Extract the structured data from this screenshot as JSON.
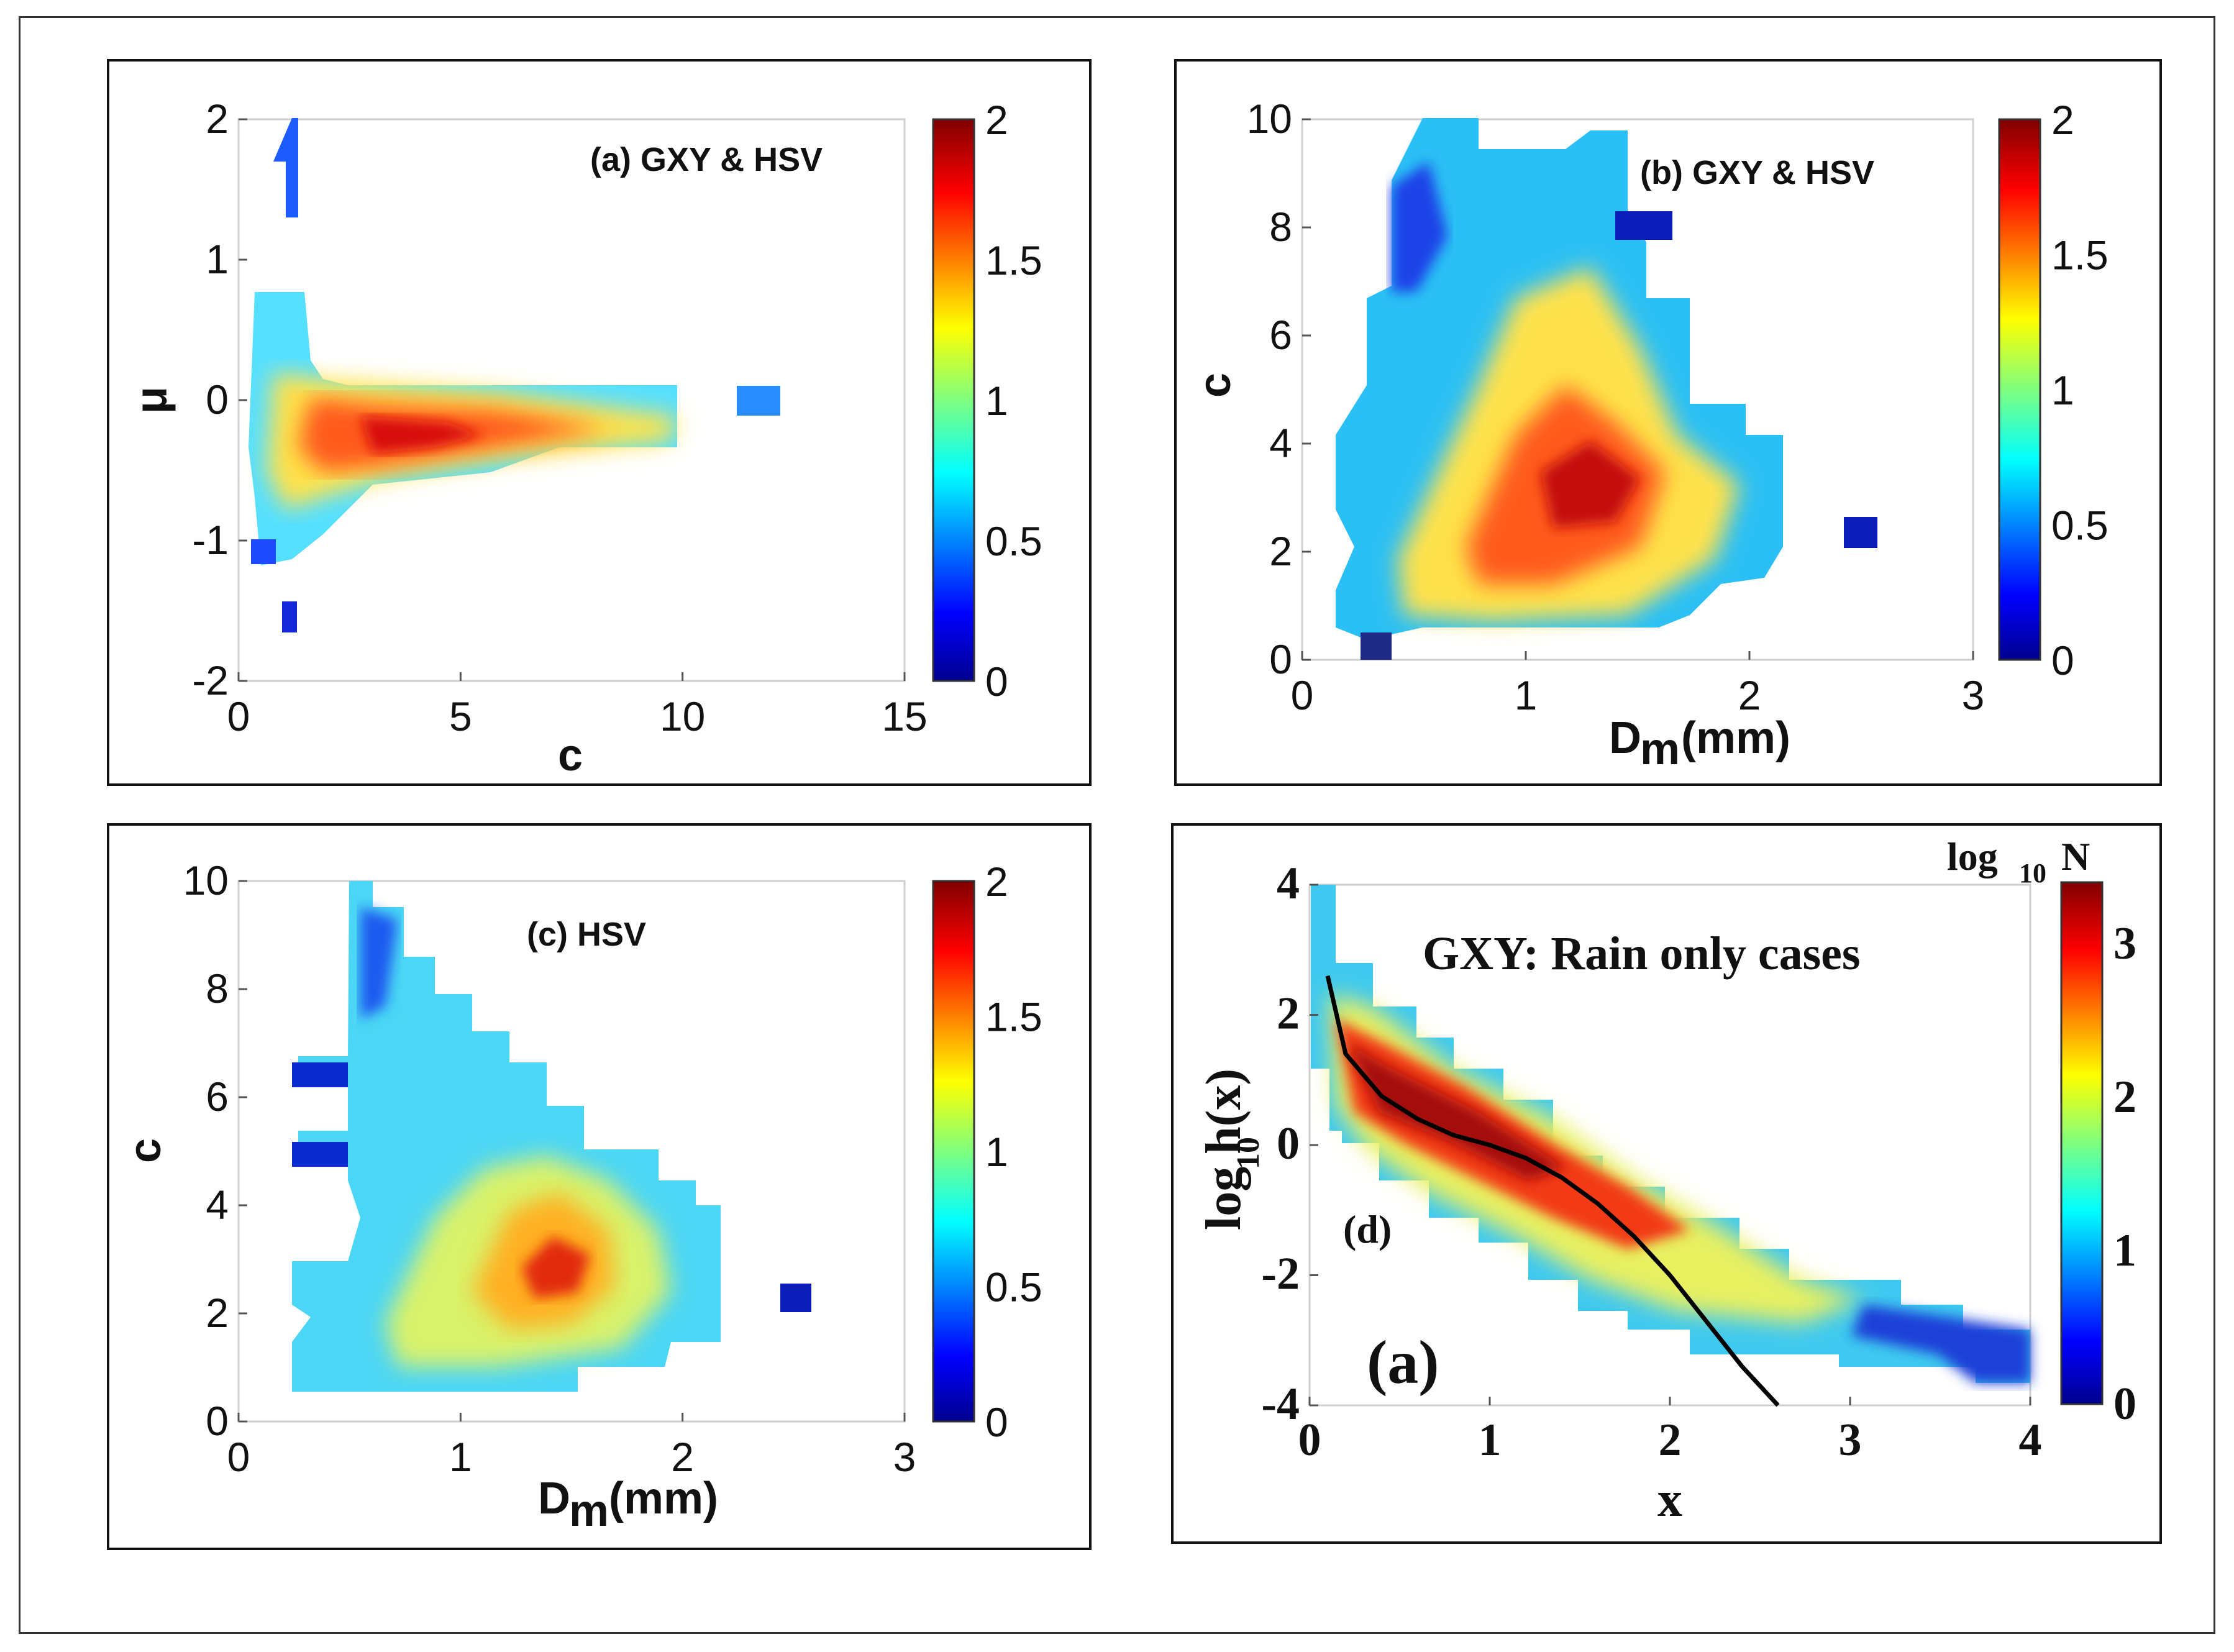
{
  "chart_data": [
    {
      "id": "a",
      "type": "heatmap",
      "title": "(a) GXY & HSV",
      "xlabel": "c",
      "ylabel": "μ",
      "xlim": [
        0,
        15
      ],
      "ylim": [
        -2,
        2
      ],
      "xticks": [
        "0",
        "5",
        "10",
        "15"
      ],
      "yticks": [
        "-2",
        "-1",
        "0",
        "1",
        "2"
      ],
      "colorbar": {
        "min": 0,
        "max": 2,
        "ticks": [
          "0",
          "0.5",
          "1",
          "1.5",
          "2"
        ]
      },
      "density_core": {
        "note": "peak density near c≈3, μ≈-0.3; tail to c≈10; isolated cell near c≈11.5, μ≈0"
      }
    },
    {
      "id": "b",
      "type": "heatmap",
      "title": "(b) GXY & HSV",
      "xlabel": "D_m (mm)",
      "ylabel": "c",
      "xlim": [
        0,
        3
      ],
      "ylim": [
        0,
        10
      ],
      "xticks": [
        "0",
        "1",
        "2",
        "3"
      ],
      "yticks": [
        "0",
        "2",
        "4",
        "6",
        "8",
        "10"
      ],
      "colorbar": {
        "min": 0,
        "max": 2,
        "ticks": [
          "0",
          "0.5",
          "1",
          "1.5",
          "2"
        ]
      },
      "density_core": {
        "note": "peak density near D_m≈1.2 mm, c≈3; isolated cell near D_m≈2.5, c≈2.4"
      }
    },
    {
      "id": "c",
      "type": "heatmap",
      "title": "(c) HSV",
      "xlabel": "D_m (mm)",
      "ylabel": "c",
      "xlim": [
        0,
        3
      ],
      "ylim": [
        0,
        10
      ],
      "xticks": [
        "0",
        "1",
        "2",
        "3"
      ],
      "yticks": [
        "0",
        "2",
        "4",
        "6",
        "8",
        "10"
      ],
      "colorbar": {
        "min": 0,
        "max": 2,
        "ticks": [
          "0",
          "0.5",
          "1",
          "1.5",
          "2"
        ]
      },
      "density_core": {
        "note": "peak density near D_m≈1.4 mm, c≈3; isolated cell near D_m≈2.5, c≈2.4"
      }
    },
    {
      "id": "d",
      "type": "heatmap",
      "title": "GXY: Rain only cases",
      "panel_tag": "(d)",
      "inner_tag": "(a)",
      "xlabel": "x",
      "ylabel": "log10 h(x)",
      "xlim": [
        0,
        4
      ],
      "ylim": [
        -4,
        4
      ],
      "xticks": [
        "0",
        "1",
        "2",
        "3",
        "4"
      ],
      "yticks": [
        "-4",
        "-2",
        "0",
        "2",
        "4"
      ],
      "colorbar": {
        "label": "log10 N",
        "min": 0,
        "max": 3.4,
        "ticks": [
          "0",
          "1",
          "2",
          "3"
        ]
      },
      "fit_curve": {
        "x": [
          0.1,
          0.2,
          0.4,
          0.6,
          0.8,
          1.0,
          1.2,
          1.4,
          1.6,
          1.8,
          2.0,
          2.2,
          2.4,
          2.6
        ],
        "y": [
          2.6,
          1.4,
          0.75,
          0.4,
          0.15,
          0.0,
          -0.2,
          -0.5,
          -0.9,
          -1.4,
          -2.0,
          -2.7,
          -3.4,
          -4.0
        ]
      }
    }
  ]
}
